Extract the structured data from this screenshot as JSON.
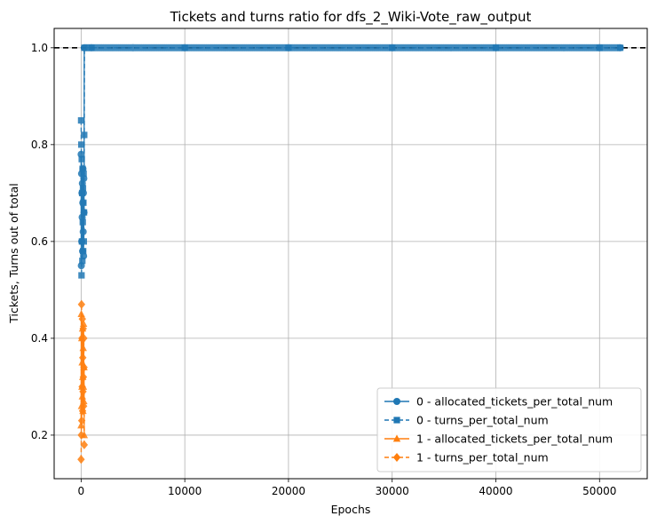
{
  "chart_data": {
    "type": "line",
    "title": "Tickets and turns ratio for dfs_2_Wiki-Vote_raw_output",
    "xlabel": "Epochs",
    "ylabel": "Tickets, Turns out of total",
    "xlim": [
      -2600,
      54600
    ],
    "ylim": [
      0.11,
      1.04
    ],
    "xticks": [
      0,
      10000,
      20000,
      30000,
      40000,
      50000
    ],
    "yticks": [
      0.2,
      0.4,
      0.6,
      0.8,
      1.0
    ],
    "xtick_labels": [
      "0",
      "10000",
      "20000",
      "30000",
      "40000",
      "50000"
    ],
    "ytick_labels": [
      "0.2",
      "0.4",
      "0.6",
      "0.8",
      "1.0"
    ],
    "grid": true,
    "legend_position": "lower right",
    "reference_line": {
      "y": 1.0,
      "style": "dashed",
      "color": "#000000"
    },
    "series": [
      {
        "name": "0 - allocated_tickets_per_total_num",
        "color": "#1f77b4",
        "marker": "circle",
        "linestyle": "solid",
        "x": [
          0,
          20,
          40,
          60,
          80,
          100,
          120,
          140,
          160,
          180,
          200,
          220,
          240,
          260,
          280,
          300,
          1000,
          5000,
          10000,
          20000,
          30000,
          40000,
          50000,
          52000
        ],
        "y": [
          0.78,
          0.55,
          0.74,
          0.6,
          0.7,
          0.65,
          0.72,
          0.58,
          0.68,
          0.75,
          0.62,
          0.7,
          0.57,
          0.73,
          0.66,
          1.0,
          1.0,
          1.0,
          1.0,
          1.0,
          1.0,
          1.0,
          1.0,
          1.0
        ]
      },
      {
        "name": "0 - turns_per_total_num",
        "color": "#1f77b4",
        "marker": "square",
        "linestyle": "dashed",
        "x": [
          0,
          20,
          40,
          60,
          80,
          100,
          120,
          140,
          160,
          180,
          200,
          220,
          240,
          260,
          280,
          300,
          320,
          1000,
          10000,
          20000,
          30000,
          40000,
          50000,
          52000
        ],
        "y": [
          0.85,
          0.8,
          0.53,
          0.77,
          0.6,
          0.7,
          0.56,
          0.75,
          0.64,
          0.71,
          0.58,
          0.68,
          0.74,
          0.6,
          0.66,
          0.82,
          1.0,
          1.0,
          1.0,
          1.0,
          1.0,
          1.0,
          1.0,
          1.0
        ]
      },
      {
        "name": "1 - allocated_tickets_per_total_num",
        "color": "#ff7f0e",
        "marker": "triangle",
        "linestyle": "solid",
        "x": [
          0,
          20,
          40,
          60,
          80,
          100,
          120,
          140,
          160,
          180,
          200,
          220,
          240,
          260,
          280,
          300
        ],
        "y": [
          0.22,
          0.45,
          0.26,
          0.4,
          0.3,
          0.35,
          0.28,
          0.42,
          0.32,
          0.25,
          0.38,
          0.3,
          0.43,
          0.27,
          0.34,
          0.2
        ]
      },
      {
        "name": "1 - turns_per_total_num",
        "color": "#ff7f0e",
        "marker": "diamond",
        "linestyle": "dashed",
        "x": [
          0,
          20,
          40,
          60,
          80,
          100,
          120,
          140,
          160,
          180,
          200,
          220,
          240,
          260,
          280,
          300
        ],
        "y": [
          0.15,
          0.2,
          0.47,
          0.23,
          0.4,
          0.3,
          0.44,
          0.25,
          0.36,
          0.29,
          0.42,
          0.32,
          0.26,
          0.4,
          0.34,
          0.18
        ]
      }
    ]
  }
}
